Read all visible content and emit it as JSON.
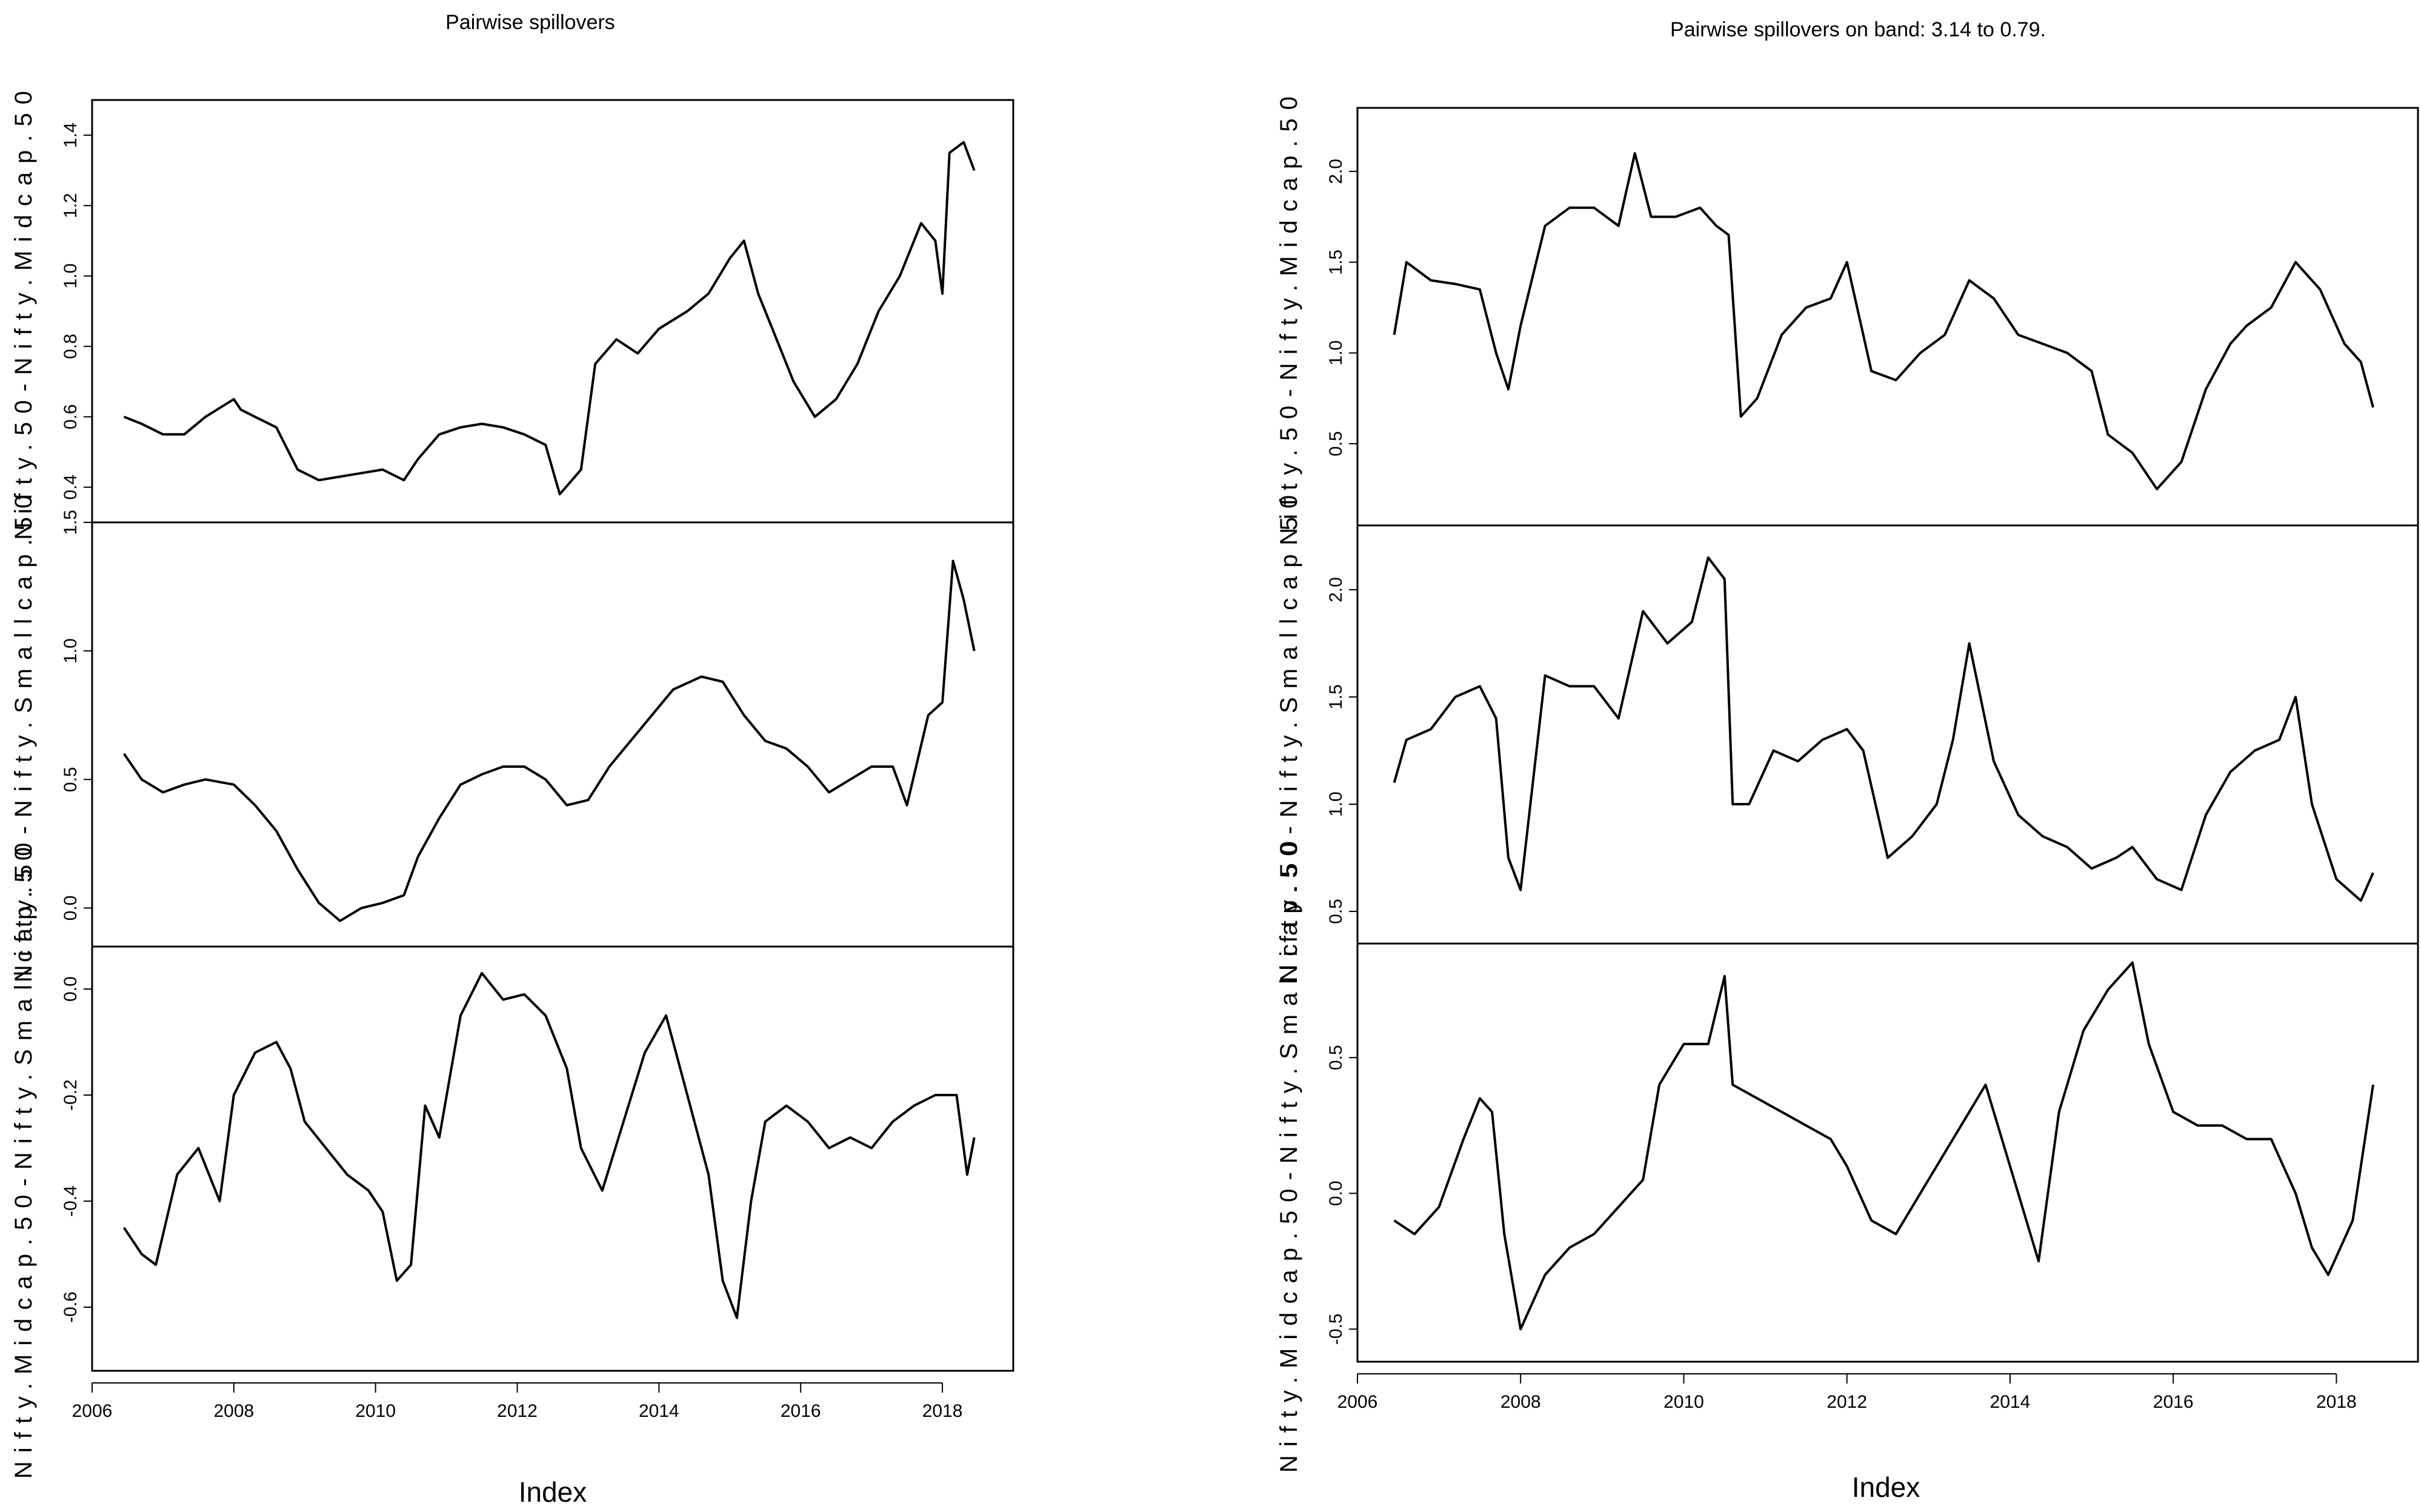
{
  "chart_data": [
    {
      "type": "line",
      "title": "Pairwise spillovers",
      "xlabel": "Index",
      "x_ticks": [
        "2006",
        "2008",
        "2010",
        "2012",
        "2014",
        "2016",
        "2018"
      ],
      "xlim": [
        2006.0,
        2019.0
      ],
      "panels": [
        {
          "ylabel": "Nifty.50-Nifty.Midcap.50",
          "ylim": [
            0.3,
            1.5
          ],
          "y_ticks": [
            "0.4",
            "0.6",
            "0.8",
            "1.0",
            "1.2",
            "1.4"
          ],
          "series": [
            {
              "x": [
                2006.45,
                2006.7,
                2007.0,
                2007.3,
                2007.6,
                2008.0,
                2008.1,
                2008.3,
                2008.6,
                2008.9,
                2009.2,
                2009.5,
                2009.8,
                2010.1,
                2010.4,
                2010.6,
                2010.9,
                2011.2,
                2011.5,
                2011.8,
                2012.1,
                2012.4,
                2012.6,
                2012.9,
                2013.1,
                2013.4,
                2013.7,
                2014.0,
                2014.4,
                2014.7,
                2015.0,
                2015.2,
                2015.4,
                2015.7,
                2015.9,
                2016.2,
                2016.5,
                2016.8,
                2017.1,
                2017.4,
                2017.7,
                2017.9,
                2018.0,
                2018.1,
                2018.3,
                2018.45
              ],
              "y": [
                0.6,
                0.58,
                0.55,
                0.55,
                0.6,
                0.65,
                0.62,
                0.6,
                0.57,
                0.45,
                0.42,
                0.43,
                0.44,
                0.45,
                0.42,
                0.48,
                0.55,
                0.57,
                0.58,
                0.57,
                0.55,
                0.52,
                0.38,
                0.45,
                0.75,
                0.82,
                0.78,
                0.85,
                0.9,
                0.95,
                1.05,
                1.1,
                0.95,
                0.8,
                0.7,
                0.6,
                0.65,
                0.75,
                0.9,
                1.0,
                1.15,
                1.1,
                0.95,
                1.35,
                1.38,
                1.3
              ]
            }
          ]
        },
        {
          "ylabel": "Nifty.50-Nifty.Smallcap.50",
          "ylim": [
            -0.15,
            1.5
          ],
          "y_ticks": [
            "0.0",
            "0.5",
            "1.0",
            "1.5"
          ],
          "series": [
            {
              "x": [
                2006.45,
                2006.7,
                2007.0,
                2007.3,
                2007.6,
                2008.0,
                2008.3,
                2008.6,
                2008.9,
                2009.2,
                2009.5,
                2009.8,
                2010.1,
                2010.4,
                2010.6,
                2010.9,
                2011.2,
                2011.5,
                2011.8,
                2012.1,
                2012.4,
                2012.7,
                2013.0,
                2013.3,
                2013.6,
                2013.9,
                2014.2,
                2014.6,
                2014.9,
                2015.2,
                2015.5,
                2015.8,
                2016.1,
                2016.4,
                2016.7,
                2017.0,
                2017.3,
                2017.5,
                2017.8,
                2018.0,
                2018.15,
                2018.3,
                2018.45
              ],
              "y": [
                0.6,
                0.5,
                0.45,
                0.48,
                0.5,
                0.48,
                0.4,
                0.3,
                0.15,
                0.02,
                -0.05,
                0.0,
                0.02,
                0.05,
                0.2,
                0.35,
                0.48,
                0.52,
                0.55,
                0.55,
                0.5,
                0.4,
                0.42,
                0.55,
                0.65,
                0.75,
                0.85,
                0.9,
                0.88,
                0.75,
                0.65,
                0.62,
                0.55,
                0.45,
                0.5,
                0.55,
                0.55,
                0.4,
                0.75,
                0.8,
                1.35,
                1.2,
                1.0
              ]
            }
          ]
        },
        {
          "ylabel": "Nifty.Midcap.50-Nifty.Smallcap.50",
          "ylim": [
            -0.72,
            0.08
          ],
          "y_ticks": [
            "-0.6",
            "-0.4",
            "-0.2",
            "0.0"
          ],
          "series": [
            {
              "x": [
                2006.45,
                2006.7,
                2006.9,
                2007.2,
                2007.5,
                2007.8,
                2008.0,
                2008.3,
                2008.6,
                2008.8,
                2009.0,
                2009.3,
                2009.6,
                2009.9,
                2010.1,
                2010.3,
                2010.5,
                2010.7,
                2010.9,
                2011.2,
                2011.5,
                2011.8,
                2012.1,
                2012.4,
                2012.7,
                2012.9,
                2013.2,
                2013.5,
                2013.8,
                2014.1,
                2014.4,
                2014.7,
                2014.9,
                2015.1,
                2015.3,
                2015.5,
                2015.8,
                2016.1,
                2016.4,
                2016.7,
                2017.0,
                2017.3,
                2017.6,
                2017.9,
                2018.2,
                2018.35,
                2018.45
              ],
              "y": [
                -0.45,
                -0.5,
                -0.52,
                -0.35,
                -0.3,
                -0.4,
                -0.2,
                -0.12,
                -0.1,
                -0.15,
                -0.25,
                -0.3,
                -0.35,
                -0.38,
                -0.42,
                -0.55,
                -0.52,
                -0.22,
                -0.28,
                -0.05,
                0.03,
                -0.02,
                -0.01,
                -0.05,
                -0.15,
                -0.3,
                -0.38,
                -0.25,
                -0.12,
                -0.05,
                -0.2,
                -0.35,
                -0.55,
                -0.62,
                -0.4,
                -0.25,
                -0.22,
                -0.25,
                -0.3,
                -0.28,
                -0.3,
                -0.25,
                -0.22,
                -0.2,
                -0.2,
                -0.35,
                -0.28
              ]
            }
          ]
        }
      ]
    },
    {
      "type": "line",
      "title": "Pairwise spillovers on band: 3.14 to 0.79.",
      "xlabel": "Index",
      "x_ticks": [
        "2006",
        "2008",
        "2010",
        "2012",
        "2014",
        "2016",
        "2018"
      ],
      "xlim": [
        2006.0,
        2019.0
      ],
      "panels": [
        {
          "ylabel": "Nifty.50-Nifty.Midcap.50",
          "ylim": [
            0.05,
            2.35
          ],
          "y_ticks": [
            "0.5",
            "1.0",
            "1.5",
            "2.0"
          ],
          "series": [
            {
              "x": [
                2006.45,
                2006.6,
                2006.9,
                2007.2,
                2007.5,
                2007.7,
                2007.85,
                2008.0,
                2008.3,
                2008.6,
                2008.9,
                2009.2,
                2009.4,
                2009.6,
                2009.9,
                2010.2,
                2010.4,
                2010.55,
                2010.7,
                2010.9,
                2011.2,
                2011.5,
                2011.8,
                2012.0,
                2012.3,
                2012.6,
                2012.9,
                2013.2,
                2013.5,
                2013.8,
                2014.1,
                2014.4,
                2014.7,
                2015.0,
                2015.2,
                2015.5,
                2015.8,
                2016.1,
                2016.4,
                2016.7,
                2016.9,
                2017.2,
                2017.5,
                2017.8,
                2018.1,
                2018.3,
                2018.45
              ],
              "y": [
                1.1,
                1.5,
                1.4,
                1.38,
                1.35,
                1.0,
                0.8,
                1.15,
                1.7,
                1.8,
                1.8,
                1.7,
                2.1,
                1.75,
                1.75,
                1.8,
                1.7,
                1.65,
                0.65,
                0.75,
                1.1,
                1.25,
                1.3,
                1.5,
                0.9,
                0.85,
                1.0,
                1.1,
                1.4,
                1.3,
                1.1,
                1.05,
                1.0,
                0.9,
                0.55,
                0.45,
                0.25,
                0.4,
                0.8,
                1.05,
                1.15,
                1.25,
                1.5,
                1.35,
                1.05,
                0.95,
                0.7
              ]
            }
          ]
        },
        {
          "ylabel": "Nifty.50-Nifty.Smallcap.50",
          "ylim": [
            0.35,
            2.3
          ],
          "y_ticks": [
            "0.5",
            "1.0",
            "1.5",
            "2.0"
          ],
          "series": [
            {
              "x": [
                2006.45,
                2006.6,
                2006.9,
                2007.2,
                2007.5,
                2007.7,
                2007.85,
                2008.0,
                2008.3,
                2008.6,
                2008.9,
                2009.2,
                2009.5,
                2009.8,
                2010.1,
                2010.3,
                2010.5,
                2010.6,
                2010.8,
                2011.1,
                2011.4,
                2011.7,
                2012.0,
                2012.2,
                2012.5,
                2012.8,
                2013.1,
                2013.3,
                2013.5,
                2013.8,
                2014.1,
                2014.4,
                2014.7,
                2015.0,
                2015.3,
                2015.5,
                2015.8,
                2016.1,
                2016.4,
                2016.7,
                2017.0,
                2017.3,
                2017.5,
                2017.7,
                2018.0,
                2018.3,
                2018.45
              ],
              "y": [
                1.1,
                1.3,
                1.35,
                1.5,
                1.55,
                1.4,
                0.75,
                0.6,
                1.6,
                1.55,
                1.55,
                1.4,
                1.9,
                1.75,
                1.85,
                2.15,
                2.05,
                1.0,
                1.0,
                1.25,
                1.2,
                1.3,
                1.35,
                1.25,
                0.75,
                0.85,
                1.0,
                1.3,
                1.75,
                1.2,
                0.95,
                0.85,
                0.8,
                0.7,
                0.75,
                0.8,
                0.65,
                0.6,
                0.95,
                1.15,
                1.25,
                1.3,
                1.5,
                1.0,
                0.65,
                0.55,
                0.68
              ]
            }
          ]
        },
        {
          "ylabel": "Nifty.Midcap.50-Nifty.Smallcap.50",
          "ylim": [
            -0.62,
            0.92
          ],
          "y_ticks": [
            "-0.5",
            "0.0",
            "0.5"
          ],
          "series": [
            {
              "x": [
                2006.45,
                2006.7,
                2007.0,
                2007.3,
                2007.5,
                2007.65,
                2007.8,
                2008.0,
                2008.3,
                2008.6,
                2008.9,
                2009.2,
                2009.5,
                2009.7,
                2010.0,
                2010.3,
                2010.5,
                2010.6,
                2010.9,
                2011.2,
                2011.5,
                2011.8,
                2012.0,
                2012.3,
                2012.6,
                2012.9,
                2013.2,
                2013.5,
                2013.7,
                2014.0,
                2014.2,
                2014.35,
                2014.6,
                2014.9,
                2015.2,
                2015.5,
                2015.7,
                2016.0,
                2016.3,
                2016.6,
                2016.9,
                2017.2,
                2017.5,
                2017.7,
                2017.9,
                2018.2,
                2018.45
              ],
              "y": [
                -0.1,
                -0.15,
                -0.05,
                0.2,
                0.35,
                0.3,
                -0.15,
                -0.5,
                -0.3,
                -0.2,
                -0.15,
                -0.05,
                0.05,
                0.4,
                0.55,
                0.55,
                0.8,
                0.4,
                0.35,
                0.3,
                0.25,
                0.2,
                0.1,
                -0.1,
                -0.15,
                0.0,
                0.15,
                0.3,
                0.4,
                0.1,
                -0.1,
                -0.25,
                0.3,
                0.6,
                0.75,
                0.85,
                0.55,
                0.3,
                0.25,
                0.25,
                0.2,
                0.2,
                0.0,
                -0.2,
                -0.3,
                -0.1,
                0.4
              ]
            }
          ]
        }
      ]
    }
  ]
}
